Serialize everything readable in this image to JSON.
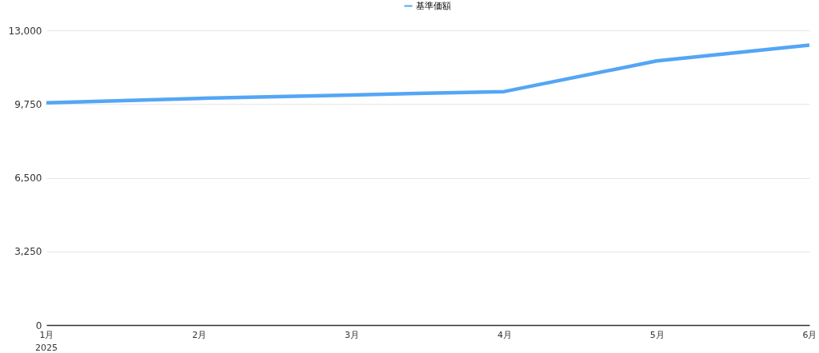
{
  "chart_data": {
    "type": "line",
    "categories": [
      "1月",
      "2月",
      "3月",
      "4月",
      "5月",
      "6月"
    ],
    "series": [
      {
        "name": "基準価額",
        "color": "#54a6f5",
        "values": [
          9800,
          10000,
          10150,
          10300,
          11650,
          12350
        ]
      }
    ],
    "ylim": [
      0,
      13000
    ],
    "yticks": [
      0,
      {
        "value": 3250,
        "label": "3,250"
      },
      {
        "value": 6500,
        "label": "6,500"
      },
      {
        "value": 9750,
        "label": "9,750"
      },
      {
        "value": 13000,
        "label": "13,000"
      }
    ],
    "grid": "y",
    "legend": "top",
    "marker": "none",
    "line_style": "solid",
    "annotations": [
      "2025"
    ]
  }
}
